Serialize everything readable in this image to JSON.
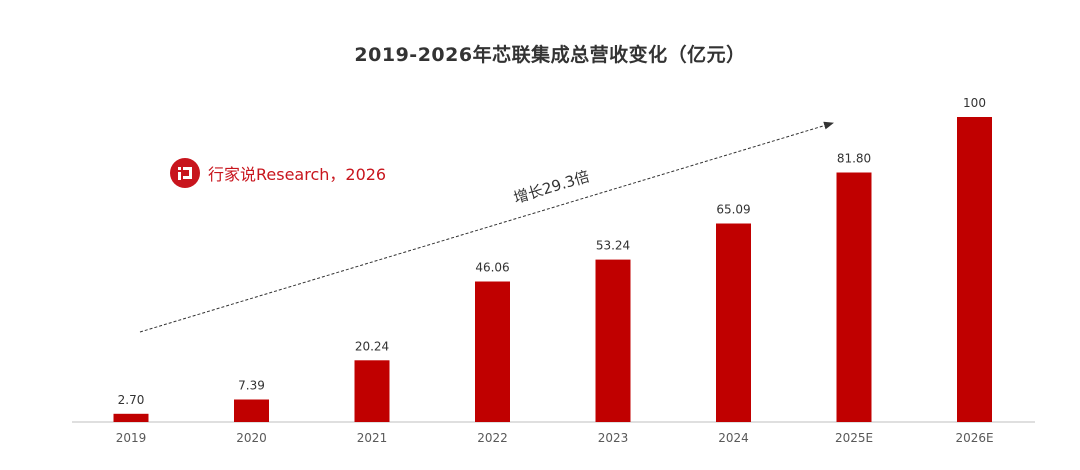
{
  "header": {
    "title": "2019-2026年芯联集成总营收变化（亿元）"
  },
  "watermark": {
    "text": "行家说Research，2026",
    "logo_icon": "brand-logo-icon",
    "color": "#c8151d"
  },
  "annotation": {
    "text": "增长29.3倍"
  },
  "colors": {
    "bar": "#c00000",
    "text": "#333333",
    "axis": "#bfbfbf",
    "tick": "#595959"
  },
  "chart_data": {
    "type": "bar",
    "title": "2019-2026年芯联集成总营收变化（亿元）",
    "categories": [
      "2019",
      "2020",
      "2021",
      "2022",
      "2023",
      "2024",
      "2025E",
      "2026E"
    ],
    "values": [
      2.7,
      7.39,
      20.24,
      46.06,
      53.24,
      65.09,
      81.8,
      100
    ],
    "value_labels": [
      "2.70",
      "7.39",
      "20.24",
      "46.06",
      "53.24",
      "65.09",
      "81.80",
      "100"
    ],
    "ylim": [
      0,
      100
    ],
    "xlabel": "",
    "ylabel": "",
    "grid": false,
    "legend": "none",
    "annotation": {
      "text": "增长29.3倍",
      "style": "dashed-arrow"
    }
  }
}
